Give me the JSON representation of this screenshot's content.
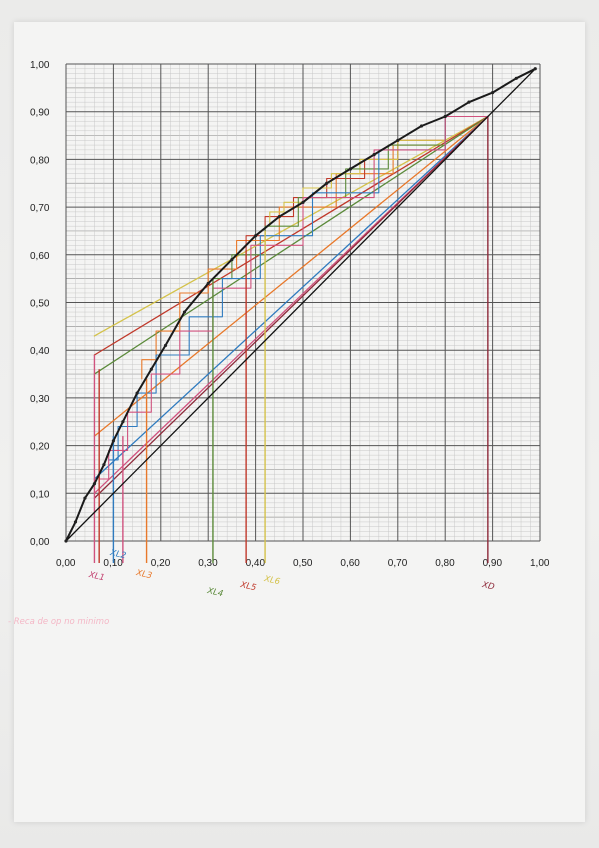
{
  "chart_data": {
    "type": "line",
    "title": "",
    "xlabel": "",
    "ylabel": "",
    "xlim": [
      0,
      1
    ],
    "ylim": [
      0,
      1
    ],
    "grid": true,
    "x_ticks": [
      "0,00",
      "0,10",
      "0,20",
      "0,30",
      "0,40",
      "0,50",
      "0,60",
      "0,70",
      "0,80",
      "0,90",
      "1,00"
    ],
    "y_ticks": [
      "0,00",
      "0,10",
      "0,20",
      "0,30",
      "0,40",
      "0,50",
      "0,60",
      "0,70",
      "0,80",
      "0,90",
      "1,00"
    ],
    "equilibrium_curve": {
      "x": [
        0,
        0.02,
        0.04,
        0.06,
        0.08,
        0.1,
        0.12,
        0.15,
        0.18,
        0.21,
        0.25,
        0.3,
        0.35,
        0.4,
        0.45,
        0.5,
        0.55,
        0.6,
        0.65,
        0.7,
        0.75,
        0.8,
        0.85,
        0.9,
        0.95,
        0.99
      ],
      "y": [
        0,
        0.04,
        0.09,
        0.12,
        0.16,
        0.21,
        0.25,
        0.31,
        0.36,
        0.41,
        0.48,
        0.54,
        0.59,
        0.64,
        0.68,
        0.71,
        0.75,
        0.78,
        0.81,
        0.84,
        0.87,
        0.89,
        0.92,
        0.94,
        0.97,
        0.99
      ],
      "color": "#1a1a1a"
    },
    "diagonal": {
      "x": [
        0,
        0.99
      ],
      "y": [
        0,
        0.99
      ],
      "color": "#111111"
    },
    "operating_lines": [
      {
        "x": [
          0.06,
          0.89
        ],
        "y": [
          0.43,
          0.89
        ],
        "color": "#d4c24a"
      },
      {
        "x": [
          0.06,
          0.89
        ],
        "y": [
          0.39,
          0.89
        ],
        "color": "#c0392b"
      },
      {
        "x": [
          0.06,
          0.89
        ],
        "y": [
          0.35,
          0.89
        ],
        "color": "#5b8a3a"
      },
      {
        "x": [
          0.06,
          0.89
        ],
        "y": [
          0.22,
          0.89
        ],
        "color": "#e8782a"
      },
      {
        "x": [
          0.06,
          0.89
        ],
        "y": [
          0.13,
          0.89
        ],
        "color": "#2f7bbf"
      },
      {
        "x": [
          0.06,
          0.89
        ],
        "y": [
          0.1,
          0.89
        ],
        "color": "#d0527e"
      },
      {
        "x": [
          0.06,
          0.89
        ],
        "y": [
          0.09,
          0.89
        ],
        "color": "#8e2a3a"
      }
    ],
    "stage_steps": [
      {
        "color": "#e8782a",
        "points": [
          [
            0.89,
            0.89
          ],
          [
            0.8,
            0.89
          ],
          [
            0.8,
            0.83
          ],
          [
            0.69,
            0.83
          ],
          [
            0.69,
            0.77
          ],
          [
            0.57,
            0.77
          ],
          [
            0.57,
            0.7
          ],
          [
            0.45,
            0.7
          ],
          [
            0.45,
            0.63
          ],
          [
            0.36,
            0.63
          ],
          [
            0.36,
            0.57
          ],
          [
            0.3,
            0.57
          ],
          [
            0.3,
            0.52
          ],
          [
            0.24,
            0.52
          ],
          [
            0.24,
            0.44
          ],
          [
            0.19,
            0.44
          ],
          [
            0.19,
            0.38
          ],
          [
            0.16,
            0.38
          ],
          [
            0.16,
            0.34
          ]
        ]
      },
      {
        "color": "#c0392b",
        "points": [
          [
            0.89,
            0.89
          ],
          [
            0.8,
            0.89
          ],
          [
            0.8,
            0.84
          ],
          [
            0.7,
            0.84
          ],
          [
            0.7,
            0.8
          ],
          [
            0.63,
            0.8
          ],
          [
            0.63,
            0.76
          ],
          [
            0.55,
            0.76
          ],
          [
            0.55,
            0.72
          ],
          [
            0.48,
            0.72
          ],
          [
            0.48,
            0.68
          ],
          [
            0.42,
            0.68
          ],
          [
            0.42,
            0.64
          ],
          [
            0.38,
            0.64
          ],
          [
            0.38,
            0.61
          ]
        ]
      },
      {
        "color": "#d4c24a",
        "points": [
          [
            0.89,
            0.89
          ],
          [
            0.8,
            0.89
          ],
          [
            0.8,
            0.84
          ],
          [
            0.7,
            0.84
          ],
          [
            0.7,
            0.8
          ],
          [
            0.62,
            0.8
          ],
          [
            0.62,
            0.77
          ],
          [
            0.56,
            0.77
          ],
          [
            0.56,
            0.74
          ],
          [
            0.5,
            0.74
          ],
          [
            0.5,
            0.71
          ],
          [
            0.46,
            0.71
          ],
          [
            0.46,
            0.69
          ],
          [
            0.43,
            0.69
          ],
          [
            0.43,
            0.66
          ]
        ]
      },
      {
        "color": "#5b8a3a",
        "points": [
          [
            0.89,
            0.89
          ],
          [
            0.8,
            0.89
          ],
          [
            0.8,
            0.83
          ],
          [
            0.68,
            0.83
          ],
          [
            0.68,
            0.78
          ],
          [
            0.59,
            0.78
          ],
          [
            0.59,
            0.72
          ],
          [
            0.49,
            0.72
          ],
          [
            0.49,
            0.66
          ],
          [
            0.42,
            0.66
          ],
          [
            0.42,
            0.6
          ],
          [
            0.35,
            0.6
          ],
          [
            0.35,
            0.55
          ],
          [
            0.31,
            0.55
          ]
        ]
      },
      {
        "color": "#2f7bbf",
        "points": [
          [
            0.89,
            0.89
          ],
          [
            0.8,
            0.89
          ],
          [
            0.8,
            0.82
          ],
          [
            0.66,
            0.82
          ],
          [
            0.66,
            0.73
          ],
          [
            0.52,
            0.73
          ],
          [
            0.52,
            0.64
          ],
          [
            0.41,
            0.64
          ],
          [
            0.41,
            0.55
          ],
          [
            0.33,
            0.55
          ],
          [
            0.33,
            0.47
          ],
          [
            0.26,
            0.47
          ],
          [
            0.26,
            0.39
          ],
          [
            0.19,
            0.39
          ],
          [
            0.19,
            0.31
          ],
          [
            0.15,
            0.31
          ],
          [
            0.15,
            0.24
          ],
          [
            0.11,
            0.24
          ],
          [
            0.11,
            0.17
          ],
          [
            0.09,
            0.17
          ]
        ]
      },
      {
        "color": "#d0527e",
        "points": [
          [
            0.89,
            0.89
          ],
          [
            0.8,
            0.89
          ],
          [
            0.8,
            0.82
          ],
          [
            0.65,
            0.82
          ],
          [
            0.65,
            0.72
          ],
          [
            0.5,
            0.72
          ],
          [
            0.5,
            0.62
          ],
          [
            0.39,
            0.62
          ],
          [
            0.39,
            0.53
          ],
          [
            0.31,
            0.53
          ],
          [
            0.31,
            0.44
          ],
          [
            0.24,
            0.44
          ],
          [
            0.24,
            0.35
          ],
          [
            0.18,
            0.35
          ],
          [
            0.18,
            0.27
          ],
          [
            0.13,
            0.27
          ],
          [
            0.13,
            0.19
          ],
          [
            0.09,
            0.19
          ],
          [
            0.09,
            0.13
          ],
          [
            0.07,
            0.13
          ]
        ]
      }
    ],
    "drop_lines": [
      {
        "x": 0.06,
        "top": 0.39,
        "color": "#d0527e"
      },
      {
        "x": 0.07,
        "top": 0.36,
        "color": "#c0392b"
      },
      {
        "x": 0.1,
        "top": 0.22,
        "color": "#2f7bbf"
      },
      {
        "x": 0.12,
        "top": 0.22,
        "color": "#d0527e"
      },
      {
        "x": 0.17,
        "top": 0.34,
        "color": "#e8782a"
      },
      {
        "x": 0.31,
        "top": 0.55,
        "color": "#5b8a3a"
      },
      {
        "x": 0.38,
        "top": 0.61,
        "color": "#c0392b"
      },
      {
        "x": 0.42,
        "top": 0.65,
        "color": "#d4c24a"
      },
      {
        "x": 0.89,
        "top": 0.89,
        "color": "#8e2a3a"
      }
    ],
    "annotations": [
      {
        "text": "XL1",
        "x": 0.06,
        "color": "#c2406f"
      },
      {
        "text": "XL2",
        "x": 0.105,
        "color": "#2f7bbf"
      },
      {
        "text": "XL3",
        "x": 0.16,
        "color": "#e8782a"
      },
      {
        "text": "XL4",
        "x": 0.31,
        "color": "#5b8a3a"
      },
      {
        "text": "XL5",
        "x": 0.38,
        "color": "#c0392b"
      },
      {
        "text": "XL6",
        "x": 0.43,
        "color": "#d4c24a"
      },
      {
        "text": "XD",
        "x": 0.89,
        "color": "#8e2a3a"
      }
    ],
    "note": {
      "text": "- Reca de op no minimo",
      "color": "#f4b7c6"
    }
  }
}
